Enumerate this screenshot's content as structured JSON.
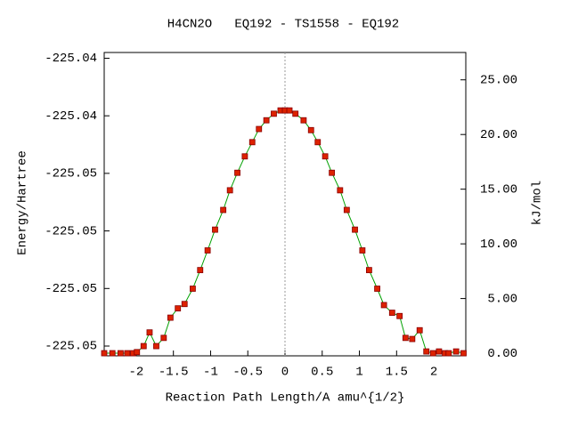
{
  "chart_data": {
    "type": "line",
    "title": "H4CN2O   EQ192 - TS1558 - EQ192",
    "xlabel": "Reaction Path Length/A amu^{1/2}",
    "ylabel": "Energy/Hartree",
    "y2label": "kJ/mol",
    "xlim": [
      -2.43,
      2.43
    ],
    "xticks": [
      -2,
      -1.5,
      -1,
      -0.5,
      0,
      0.5,
      1,
      1.5,
      2
    ],
    "ylim": [
      -225.05234,
      -225.0418
    ],
    "yticks": [
      {
        "value": -225.052,
        "label": "-225.05"
      },
      {
        "value": -225.05,
        "label": "-225.05"
      },
      {
        "value": -225.048,
        "label": "-225.05"
      },
      {
        "value": -225.046,
        "label": "-225.05"
      },
      {
        "value": -225.044,
        "label": "-225.04"
      },
      {
        "value": -225.042,
        "label": "-225.04"
      }
    ],
    "y2lim": [
      -0.24,
      27.5
    ],
    "y2ticks": [
      {
        "value": 0,
        "label": "0.00"
      },
      {
        "value": 5,
        "label": "5.00"
      },
      {
        "value": 10,
        "label": "10.00"
      },
      {
        "value": 15,
        "label": "15.00"
      },
      {
        "value": 20,
        "label": "20.00"
      },
      {
        "value": 25,
        "label": "25.00"
      }
    ],
    "ts_line": 0,
    "series": [
      {
        "axis": "y2",
        "color": "#00a000",
        "marker_color": "#dd2200",
        "x": [
          -2.43,
          -2.32,
          -2.21,
          -2.12,
          -2.04,
          -1.99,
          -1.9,
          -1.82,
          -1.73,
          -1.63,
          -1.54,
          -1.44,
          -1.35,
          -1.24,
          -1.14,
          -1.04,
          -0.94,
          -0.83,
          -0.74,
          -0.64,
          -0.54,
          -0.44,
          -0.35,
          -0.25,
          -0.15,
          -0.06,
          0,
          0.06,
          0.14,
          0.25,
          0.35,
          0.44,
          0.54,
          0.63,
          0.74,
          0.83,
          0.94,
          1.04,
          1.13,
          1.24,
          1.33,
          1.44,
          1.54,
          1.62,
          1.71,
          1.81,
          1.9,
          1.99,
          2.07,
          2.15,
          2.2,
          2.3,
          2.4
        ],
        "values": [
          0,
          0,
          0,
          0,
          0,
          0.1,
          0.65,
          1.9,
          0.65,
          1.4,
          3.25,
          4.1,
          4.5,
          5.9,
          7.6,
          9.4,
          11.3,
          13.1,
          14.9,
          16.5,
          18.0,
          19.3,
          20.5,
          21.3,
          21.9,
          22.2,
          22.2,
          22.2,
          21.9,
          21.3,
          20.4,
          19.3,
          18.0,
          16.5,
          14.9,
          13.1,
          11.3,
          9.4,
          7.6,
          5.9,
          4.4,
          3.7,
          3.4,
          1.4,
          1.3,
          2.1,
          0.16,
          0,
          0.16,
          0,
          0,
          0.16,
          0
        ]
      }
    ]
  }
}
